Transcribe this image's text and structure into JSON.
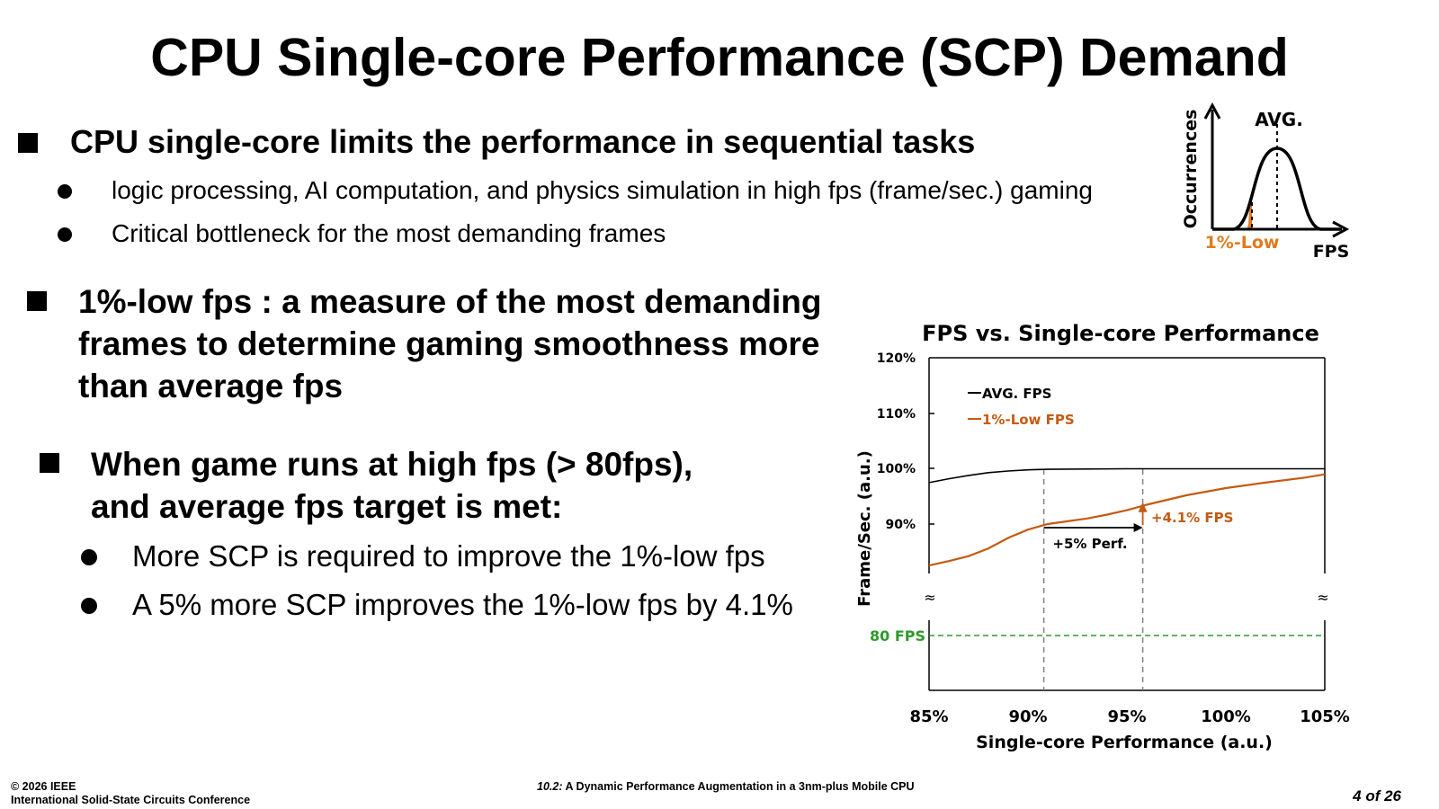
{
  "title": "CPU Single-core Performance (SCP) Demand",
  "bullets": {
    "b1": {
      "text": "CPU single-core limits the performance in sequential tasks",
      "subs": [
        "logic processing, AI computation, and physics simulation in high fps (frame/sec.) gaming",
        "Critical bottleneck for the most demanding frames"
      ]
    },
    "b2": {
      "line1": "1%-low fps : a measure of the most demanding",
      "line2": "frames to determine gaming smoothness more",
      "line3": "than average fps"
    },
    "b3": {
      "line1": "When game runs at high fps (> 80fps),",
      "line2": "and average fps target is met:",
      "subs": [
        "More SCP is required to improve the 1%-low fps",
        "A 5% more SCP improves the 1%-low fps by 4.1%"
      ]
    }
  },
  "inset": {
    "ylabel": "Occurrences",
    "xlabel": "FPS",
    "avg_label": "AVG.",
    "low_label": "1%-Low",
    "colors": {
      "low": "#E07B1F"
    }
  },
  "chart_data": {
    "type": "line",
    "title": "FPS vs. Single-core Performance",
    "xlabel": "Single-core Performance (a.u.)",
    "ylabel": "Frame/Sec. (a.u.)",
    "x_ticks": [
      "85%",
      "90%",
      "95%",
      "100%",
      "105%"
    ],
    "y_ticks": [
      "90%",
      "100%",
      "110%",
      "120%"
    ],
    "xlim": [
      85,
      105
    ],
    "ylim": [
      82,
      120
    ],
    "series": [
      {
        "name": "AVG. FPS",
        "color": "#000000",
        "x": [
          85,
          86,
          87,
          88,
          89,
          90,
          91,
          95,
          100,
          105
        ],
        "y": [
          97.5,
          98.2,
          98.8,
          99.3,
          99.6,
          99.8,
          99.9,
          100,
          100,
          100
        ]
      },
      {
        "name": "1%-Low FPS",
        "color": "#C55A11",
        "x": [
          85,
          86,
          87,
          88,
          89,
          90,
          91,
          92,
          93,
          94,
          95,
          96,
          98,
          100,
          102,
          104,
          105
        ],
        "y": [
          82.5,
          83.3,
          84.2,
          85.6,
          87.5,
          89.0,
          90.0,
          90.5,
          91.0,
          91.7,
          92.5,
          93.5,
          95.2,
          96.5,
          97.5,
          98.4,
          99
        ]
      }
    ],
    "reference_line": {
      "label": "80 FPS",
      "value": 80,
      "color": "#2E9A2E"
    },
    "annotations": {
      "perf_label": "+5% Perf.",
      "fps_label": "+4.1% FPS",
      "perf_from": 90.8,
      "perf_to": 95.8
    },
    "break_mark": "≈"
  },
  "footer": {
    "copyright": "© 2026 IEEE",
    "conference": "International Solid-State Circuits Conference",
    "paper_num": "10.2:",
    "paper_title": "A Dynamic Performance Augmentation in a 3nm-plus Mobile CPU",
    "page": "4 of 26"
  }
}
